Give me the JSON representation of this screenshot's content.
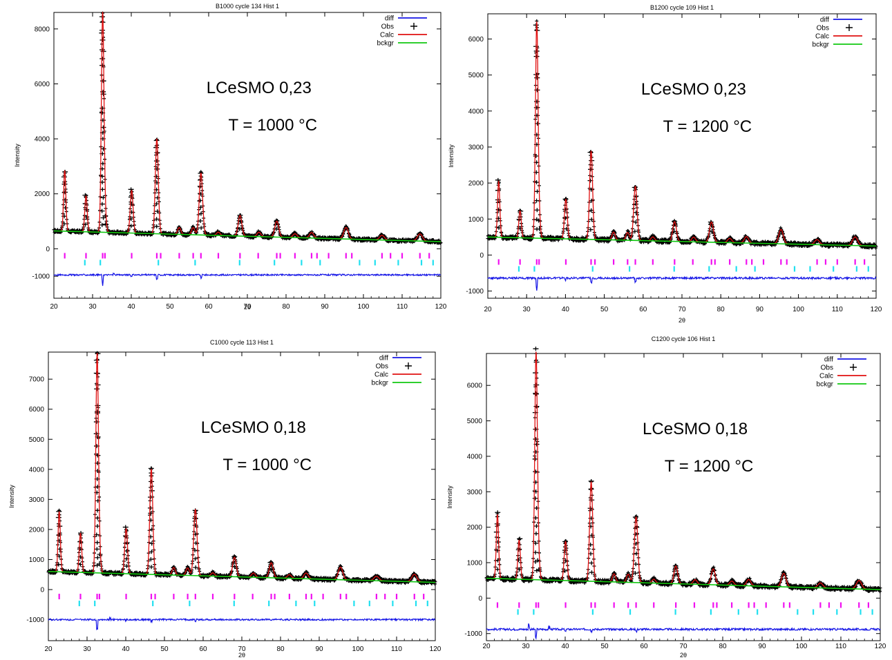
{
  "colors": {
    "diff": "#1414e6",
    "obs": "#000000",
    "calc": "#e01010",
    "bckgr": "#10c810",
    "phase1": "#f010f0",
    "phase2": "#20e0f0",
    "frame": "#000000",
    "text": "#000000"
  },
  "chart_data": [
    {
      "type": "line",
      "title": "B1000 cycle 134 Hist 1",
      "xlabel": "2θ",
      "ylabel": "Intensity",
      "xlim": [
        20,
        120
      ],
      "ylim": [
        -1800,
        8600
      ],
      "xticks": [
        20,
        30,
        40,
        50,
        60,
        70,
        80,
        90,
        100,
        110,
        120
      ],
      "yticks": [
        -1000,
        0,
        2000,
        4000,
        6000,
        8000
      ],
      "annotation": [
        "LCeSMO 0,23",
        "T = 1000 °C"
      ],
      "legend": {
        "position": "top-right",
        "entries": [
          "diff",
          "Obs",
          "Calc",
          "bckgr"
        ]
      },
      "background": {
        "start": 650,
        "end": 260
      },
      "peaks": [
        [
          22.8,
          2200
        ],
        [
          28.3,
          1300
        ],
        [
          32.6,
          7900
        ],
        [
          33.2,
          600
        ],
        [
          40.1,
          1550
        ],
        [
          46.6,
          3450
        ],
        [
          52.4,
          250
        ],
        [
          56.0,
          260
        ],
        [
          58.0,
          2250
        ],
        [
          62.5,
          120
        ],
        [
          68.1,
          750
        ],
        [
          73.0,
          160
        ],
        [
          77.6,
          580
        ],
        [
          82.3,
          140
        ],
        [
          86.6,
          200
        ],
        [
          95.5,
          420
        ],
        [
          104.8,
          170
        ],
        [
          114.6,
          260
        ]
      ],
      "diff_offset": -950,
      "diff_spikes": [
        [
          32.6,
          -420
        ],
        [
          40.0,
          -60
        ],
        [
          46.6,
          -140
        ],
        [
          58.0,
          -150
        ],
        [
          35.5,
          60
        ]
      ],
      "ticks_phase1": [
        22.8,
        28.3,
        32.6,
        33.2,
        40.1,
        46.6,
        47.6,
        52.4,
        56.0,
        58.0,
        62.5,
        68.1,
        72.8,
        77.6,
        78.5,
        82.3,
        86.6,
        88,
        91,
        95.5,
        97,
        104.8,
        107,
        110,
        114.6,
        117
      ],
      "ticks_phase2": [
        28.0,
        32.0,
        47.0,
        56.5,
        68.0,
        77.0,
        84,
        88.8,
        99,
        103,
        109,
        115,
        118
      ]
    },
    {
      "type": "line",
      "title": "B1200 cycle 109 Hist 1",
      "xlabel": "2θ",
      "ylabel": "Intensity",
      "xlim": [
        20,
        120
      ],
      "ylim": [
        -1200,
        6700
      ],
      "xticks": [
        20,
        30,
        40,
        50,
        60,
        70,
        80,
        90,
        100,
        110,
        120
      ],
      "yticks": [
        -1000,
        0,
        1000,
        2000,
        3000,
        4000,
        5000,
        6000
      ],
      "annotation": [
        "LCeSMO 0,23",
        "T = 1200 °C"
      ],
      "legend": {
        "position": "top-right",
        "entries": [
          "diff",
          "Obs",
          "Calc",
          "bckgr"
        ]
      },
      "background": {
        "start": 500,
        "end": 250
      },
      "peaks": [
        [
          22.8,
          1550
        ],
        [
          28.3,
          750
        ],
        [
          32.6,
          5900
        ],
        [
          33.2,
          500
        ],
        [
          40.1,
          1100
        ],
        [
          46.6,
          2450
        ],
        [
          52.4,
          220
        ],
        [
          56.0,
          220
        ],
        [
          58.0,
          1500
        ],
        [
          62.5,
          110
        ],
        [
          68.1,
          550
        ],
        [
          73.0,
          130
        ],
        [
          77.6,
          560
        ],
        [
          82.3,
          120
        ],
        [
          86.6,
          180
        ],
        [
          95.5,
          400
        ],
        [
          104.8,
          140
        ],
        [
          114.6,
          240
        ]
      ],
      "diff_offset": -640,
      "diff_spikes": [
        [
          32.6,
          -350
        ],
        [
          40.0,
          -50
        ],
        [
          46.6,
          -120
        ],
        [
          58.0,
          -120
        ]
      ],
      "ticks_phase1": [
        22.8,
        28.3,
        32.6,
        33.2,
        40.1,
        46.6,
        47.6,
        52.4,
        56.0,
        58.0,
        62.5,
        68.1,
        72.8,
        77.6,
        78.5,
        82.3,
        86.6,
        88,
        91,
        95.5,
        97,
        104.8,
        107,
        110,
        114.6,
        117
      ],
      "ticks_phase2": [
        28.0,
        32.0,
        47.0,
        56.5,
        68.0,
        77.0,
        84,
        88.8,
        99,
        103,
        109,
        115,
        118
      ]
    },
    {
      "type": "line",
      "title": "C1000 cycle 113 Hist 1",
      "xlabel": "2θ",
      "ylabel": "Intensity",
      "xlim": [
        20,
        120
      ],
      "ylim": [
        -1700,
        7900
      ],
      "xticks": [
        20,
        30,
        40,
        50,
        60,
        70,
        80,
        90,
        100,
        110,
        120
      ],
      "yticks": [
        -1000,
        0,
        1000,
        2000,
        3000,
        4000,
        5000,
        6000,
        7000
      ],
      "annotation": [
        "LCeSMO 0,18",
        "T = 1000 °C"
      ],
      "legend": {
        "position": "top-right",
        "entries": [
          "diff",
          "Obs",
          "Calc",
          "bckgr"
        ]
      },
      "background": {
        "start": 600,
        "end": 240
      },
      "peaks": [
        [
          22.8,
          2000
        ],
        [
          28.3,
          1300
        ],
        [
          32.6,
          7200
        ],
        [
          33.2,
          600
        ],
        [
          40.1,
          1500
        ],
        [
          46.6,
          3500
        ],
        [
          52.4,
          250
        ],
        [
          56.0,
          250
        ],
        [
          58.0,
          2200
        ],
        [
          62.5,
          110
        ],
        [
          68.1,
          650
        ],
        [
          73.0,
          140
        ],
        [
          77.6,
          500
        ],
        [
          82.3,
          120
        ],
        [
          86.6,
          190
        ],
        [
          95.5,
          420
        ],
        [
          104.8,
          150
        ],
        [
          114.6,
          250
        ]
      ],
      "diff_offset": -1000,
      "diff_spikes": [
        [
          32.6,
          -520
        ],
        [
          36.0,
          60
        ],
        [
          40.0,
          -40
        ],
        [
          46.6,
          -100
        ],
        [
          58.0,
          -100
        ]
      ],
      "ticks_phase1": [
        22.8,
        28.3,
        32.6,
        33.2,
        40.1,
        46.6,
        47.6,
        52.4,
        56.0,
        58.0,
        62.5,
        68.1,
        72.8,
        77.6,
        78.5,
        82.3,
        86.6,
        88,
        91,
        95.5,
        97,
        104.8,
        107,
        110,
        114.6,
        117
      ],
      "ticks_phase2": [
        28.0,
        32.0,
        47.0,
        56.5,
        68.0,
        77.0,
        84,
        88.8,
        99,
        103,
        109,
        115,
        118
      ]
    },
    {
      "type": "line",
      "title": "C1200 cycle 106 Hist 1",
      "xlabel": "2θ",
      "ylabel": "Intensity",
      "xlim": [
        20,
        120
      ],
      "ylim": [
        -1200,
        6900
      ],
      "xticks": [
        20,
        30,
        40,
        50,
        60,
        70,
        80,
        90,
        100,
        110,
        120
      ],
      "yticks": [
        -1000,
        0,
        1000,
        2000,
        3000,
        4000,
        5000,
        6000
      ],
      "annotation": [
        "LCeSMO 0,18",
        "T = 1200 °C"
      ],
      "legend": {
        "position": "top-right",
        "entries": [
          "diff",
          "Obs",
          "Calc",
          "bckgr"
        ]
      },
      "background": {
        "start": 560,
        "end": 240
      },
      "peaks": [
        [
          22.8,
          1800
        ],
        [
          28.3,
          1100
        ],
        [
          32.6,
          6300
        ],
        [
          33.2,
          550
        ],
        [
          40.1,
          1100
        ],
        [
          46.6,
          2800
        ],
        [
          52.4,
          230
        ],
        [
          56.0,
          230
        ],
        [
          58.0,
          1850
        ],
        [
          62.5,
          110
        ],
        [
          68.1,
          500
        ],
        [
          73.0,
          130
        ],
        [
          77.6,
          450
        ],
        [
          82.3,
          120
        ],
        [
          86.6,
          180
        ],
        [
          95.5,
          380
        ],
        [
          104.8,
          140
        ],
        [
          114.6,
          240
        ]
      ],
      "diff_offset": -880,
      "diff_spikes": [
        [
          30.8,
          150
        ],
        [
          32.6,
          -250
        ],
        [
          36.0,
          80
        ],
        [
          40.0,
          -60
        ],
        [
          46.6,
          -90
        ],
        [
          58.0,
          -80
        ]
      ],
      "ticks_phase1": [
        22.8,
        28.3,
        32.6,
        33.2,
        40.1,
        46.6,
        47.6,
        52.4,
        56.0,
        58.0,
        62.5,
        68.1,
        72.8,
        77.6,
        78.5,
        82.3,
        86.6,
        88,
        91,
        95.5,
        97,
        104.8,
        107,
        110,
        114.6,
        117
      ],
      "ticks_phase2": [
        28.0,
        32.0,
        47.0,
        56.5,
        68.0,
        77.0,
        84,
        88.8,
        99,
        103,
        109,
        115,
        118
      ]
    }
  ]
}
